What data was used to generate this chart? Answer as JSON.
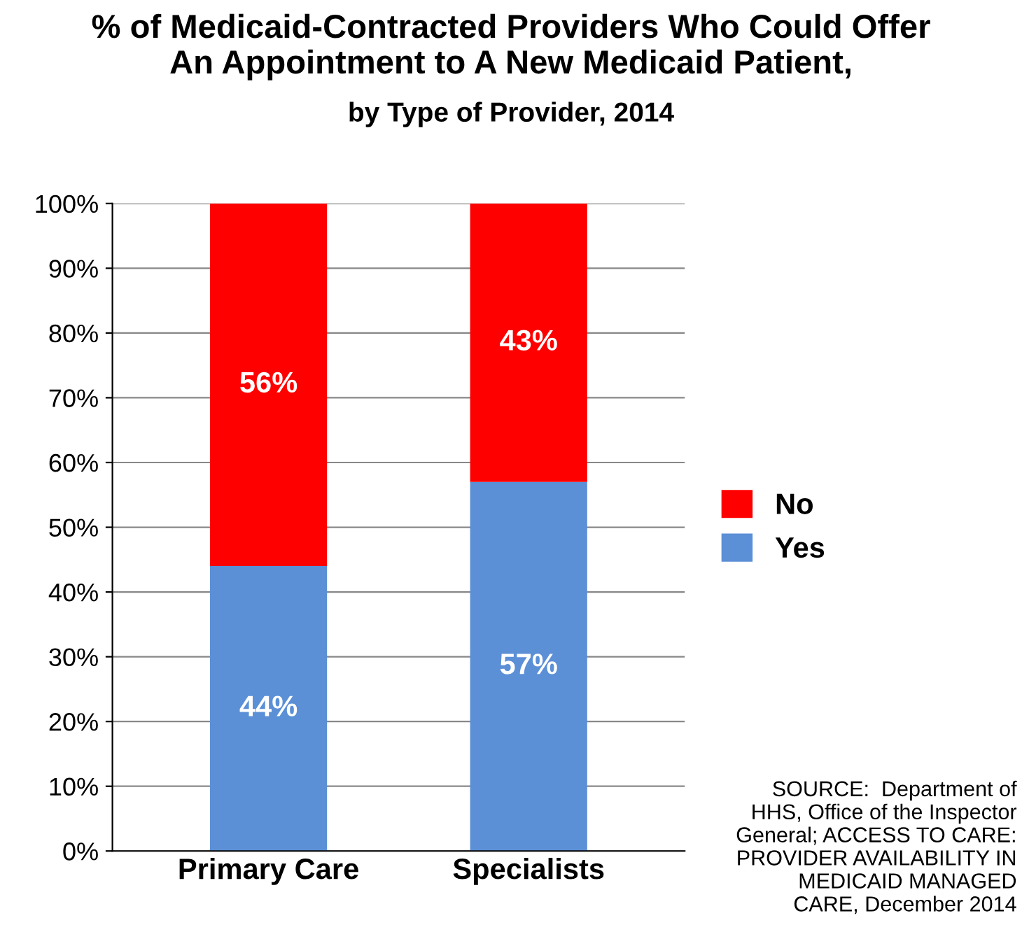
{
  "chart_data": {
    "type": "bar",
    "stacked": true,
    "title": "% of Medicaid-Contracted Providers Who Could Offer\nAn Appointment to A New Medicaid Patient,",
    "subtitle": "by Type of Provider, 2014",
    "categories": [
      "Primary Care",
      "Specialists"
    ],
    "series": [
      {
        "name": "Yes",
        "color": "#5b8fd6",
        "values": [
          44,
          57
        ],
        "value_labels": [
          "44%",
          "57%"
        ]
      },
      {
        "name": "No",
        "color": "#ff0000",
        "values": [
          56,
          43
        ],
        "value_labels": [
          "56%",
          "43%"
        ]
      }
    ],
    "ylim": [
      0,
      100
    ],
    "yticks": [
      {
        "value": 0,
        "label": "0%"
      },
      {
        "value": 10,
        "label": "10%"
      },
      {
        "value": 20,
        "label": "20%"
      },
      {
        "value": 30,
        "label": "30%"
      },
      {
        "value": 40,
        "label": "40%"
      },
      {
        "value": 50,
        "label": "50%"
      },
      {
        "value": 60,
        "label": "60%"
      },
      {
        "value": 70,
        "label": "70%"
      },
      {
        "value": 80,
        "label": "80%"
      },
      {
        "value": 90,
        "label": "90%"
      },
      {
        "value": 100,
        "label": "100%"
      }
    ],
    "grid": "y",
    "legend": "right",
    "annotations": [
      "SOURCE:  Department of HHS, Office of the Inspector General; ACCESS TO CARE: PROVIDER AVAILABILITY IN MEDICAID MANAGED CARE, December 2014"
    ]
  }
}
